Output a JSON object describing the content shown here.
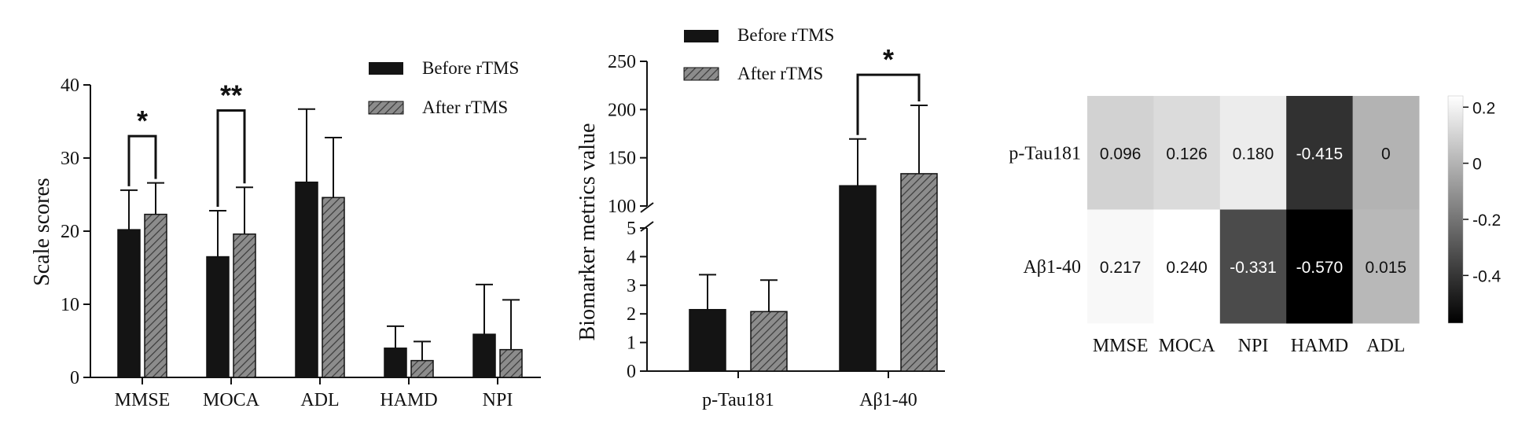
{
  "colors": {
    "before": "#141414",
    "after": "#8c8c8c",
    "hatch": "#3a3a3a",
    "axis": "#111111"
  },
  "legend": {
    "before": "Before rTMS",
    "after": "After rTMS"
  },
  "chart_data": [
    {
      "type": "bar",
      "ylabel": "Scale scores",
      "ylim": [
        0,
        40
      ],
      "yticks": [
        "0",
        "10",
        "20",
        "30",
        "40"
      ],
      "categories": [
        "MMSE",
        "MOCA",
        "ADL",
        "HAMD",
        "NPI"
      ],
      "series": [
        {
          "name": "Before rTMS",
          "values": [
            20.2,
            16.5,
            26.7,
            4.0,
            5.9
          ],
          "errors": [
            5.4,
            6.3,
            10.0,
            3.0,
            6.8
          ]
        },
        {
          "name": "After rTMS",
          "values": [
            22.3,
            19.6,
            24.6,
            2.3,
            3.8
          ],
          "errors": [
            4.3,
            6.4,
            8.2,
            2.6,
            6.8
          ]
        }
      ],
      "significance": [
        {
          "category": "MMSE",
          "label": "*",
          "y": 33
        },
        {
          "category": "MOCA",
          "label": "**",
          "y": 36.5
        }
      ],
      "legend_position": "top-right"
    },
    {
      "type": "bar",
      "ylabel": "Biomarker metrics value",
      "axis_break": {
        "lower": [
          0,
          5
        ],
        "upper": [
          100,
          250
        ]
      },
      "yticks_lower": [
        "0",
        "1",
        "2",
        "3",
        "4",
        "5"
      ],
      "yticks_upper": [
        "100",
        "150",
        "200",
        "250"
      ],
      "categories": [
        "p-Tau181",
        "Aβ1-40"
      ],
      "series": [
        {
          "name": "Before rTMS",
          "values": [
            2.15,
            121.0
          ],
          "errors": [
            1.22,
            48.5
          ]
        },
        {
          "name": "After rTMS",
          "values": [
            2.08,
            133.5
          ],
          "errors": [
            1.1,
            70.8
          ]
        }
      ],
      "significance": [
        {
          "category": "Aβ1-40",
          "label": "*",
          "y": 236
        }
      ],
      "legend_position": "top-left"
    },
    {
      "type": "heatmap",
      "rows": [
        "p-Tau181",
        "Aβ1-40"
      ],
      "columns": [
        "MMSE",
        "MOCA",
        "NPI",
        "HAMD",
        "ADL"
      ],
      "values": [
        [
          0.096,
          0.126,
          0.18,
          -0.415,
          0
        ],
        [
          0.217,
          0.24,
          -0.331,
          -0.57,
          0.015
        ]
      ],
      "labels": [
        [
          "0.096",
          "0.126",
          "0.180",
          "-0.415",
          "0"
        ],
        [
          "0.217",
          "0.240",
          "-0.331",
          "-0.570",
          "0.015"
        ]
      ],
      "colorbar": {
        "range": [
          -0.57,
          0.24
        ],
        "ticks": [
          "0.2",
          "0",
          "-0.2",
          "-0.4"
        ]
      }
    }
  ]
}
